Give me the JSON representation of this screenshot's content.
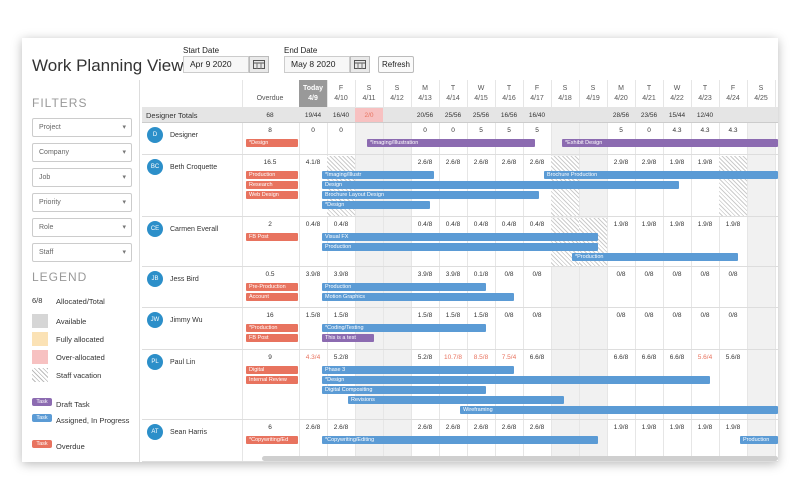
{
  "header": {
    "title": "Work Planning View",
    "start_label": "Start Date",
    "start_value": "Apr 9 2020",
    "end_label": "End Date",
    "end_value": "May 8 2020",
    "refresh_label": "Refresh"
  },
  "filters": {
    "heading": "FILTERS",
    "items": [
      "Project",
      "Company",
      "Job",
      "Priority",
      "Role",
      "Staff"
    ]
  },
  "legend": {
    "heading": "LEGEND",
    "items": [
      {
        "swatch": "6/8",
        "label": "Allocated/Total"
      },
      {
        "swatch": "",
        "label": "Available"
      },
      {
        "swatch": "",
        "label": "Fully allocated"
      },
      {
        "swatch": "",
        "label": "Over-allocated"
      },
      {
        "swatch": "",
        "label": "Staff vacation"
      }
    ],
    "tasks": [
      {
        "badge": "Task",
        "label": "Draft Task",
        "color": "#8c6bb1"
      },
      {
        "badge": "Task",
        "label": "Assigned, In Progress",
        "color": "#5b9bd5"
      },
      {
        "badge": "Task",
        "label": "Overdue",
        "color": "#e8735f"
      }
    ]
  },
  "columns": {
    "overdue_label": "Overdue",
    "days": [
      {
        "d": "Today",
        "n": "4/9"
      },
      {
        "d": "F",
        "n": "4/10"
      },
      {
        "d": "S",
        "n": "4/11"
      },
      {
        "d": "S",
        "n": "4/12"
      },
      {
        "d": "M",
        "n": "4/13"
      },
      {
        "d": "T",
        "n": "4/14"
      },
      {
        "d": "W",
        "n": "4/15"
      },
      {
        "d": "T",
        "n": "4/16"
      },
      {
        "d": "F",
        "n": "4/17"
      },
      {
        "d": "S",
        "n": "4/18"
      },
      {
        "d": "S",
        "n": "4/19"
      },
      {
        "d": "M",
        "n": "4/20"
      },
      {
        "d": "T",
        "n": "4/21"
      },
      {
        "d": "W",
        "n": "4/22"
      },
      {
        "d": "T",
        "n": "4/23"
      },
      {
        "d": "F",
        "n": "4/24"
      },
      {
        "d": "S",
        "n": "4/25"
      }
    ]
  },
  "totals": {
    "label": "Designer Totals",
    "overdue": "68",
    "values": [
      "19/44",
      "16/40",
      "2/0",
      "",
      "20/56",
      "25/56",
      "25/56",
      "16/56",
      "16/40",
      "",
      "",
      "28/56",
      "23/56",
      "15/44",
      "12/40",
      "",
      ""
    ]
  },
  "people": [
    {
      "initials": "D",
      "name": "Designer",
      "overdue": "8",
      "values": [
        "0",
        "0",
        "",
        "",
        "0",
        "0",
        "5",
        "5",
        "5",
        "",
        "",
        "5",
        "0",
        "4.3",
        "4.3",
        "4.3",
        ""
      ],
      "bars": [
        "*Design",
        "*Imaging/Illustration",
        "*Exhibit Design"
      ]
    },
    {
      "initials": "BC",
      "name": "Beth Croquette",
      "overdue": "16.5",
      "values": [
        "4.1/8",
        "",
        "",
        "",
        "2.6/8",
        "2.6/8",
        "2.6/8",
        "2.6/8",
        "2.6/8",
        "",
        "",
        "2.9/8",
        "2.9/8",
        "1.9/8",
        "1.9/8",
        "",
        ""
      ],
      "bars": [
        "Production",
        "*Imaging/Illustr",
        "Brochure Production",
        "Research",
        "Design",
        "Web Design",
        "Brochure Layout Design",
        "*Design"
      ]
    },
    {
      "initials": "CE",
      "name": "Carmen Everall",
      "overdue": "2",
      "values": [
        "0.4/8",
        "0.4/8",
        "",
        "",
        "0.4/8",
        "0.4/8",
        "0.4/8",
        "0.4/8",
        "0.4/8",
        "",
        "",
        "1.9/8",
        "1.9/8",
        "1.9/8",
        "1.9/8",
        "1.9/8",
        ""
      ],
      "bars": [
        "FB Post",
        "Visual FX",
        "Production",
        "*Production"
      ]
    },
    {
      "initials": "JB",
      "name": "Jess Bird",
      "overdue": "0.5",
      "values": [
        "3.9/8",
        "3.9/8",
        "",
        "",
        "3.9/8",
        "3.9/8",
        "0.1/8",
        "0/8",
        "0/8",
        "",
        "",
        "0/8",
        "0/8",
        "0/8",
        "0/8",
        "0/8",
        ""
      ],
      "bars": [
        "Pre-Production",
        "Production",
        "Account",
        "Motion Graphics"
      ]
    },
    {
      "initials": "JW",
      "name": "Jimmy Wu",
      "overdue": "16",
      "values": [
        "1.5/8",
        "1.5/8",
        "",
        "",
        "1.5/8",
        "1.5/8",
        "1.5/8",
        "0/8",
        "0/8",
        "",
        "",
        "0/8",
        "0/8",
        "0/8",
        "0/8",
        "0/8",
        ""
      ],
      "bars": [
        "*Production",
        "*Coding/Testing",
        "FB Post",
        "This is a test"
      ]
    },
    {
      "initials": "PL",
      "name": "Paul Lin",
      "overdue": "9",
      "values": [
        "4.3/4",
        "5.2/8",
        "",
        "",
        "5.2/8",
        "10.7/8",
        "8.5/8",
        "7.5/4",
        "6.6/8",
        "",
        "",
        "6.6/8",
        "6.6/8",
        "6.6/8",
        "5.6/4",
        "5.6/8",
        ""
      ],
      "bars": [
        "Digital",
        "Phase 3",
        "Internal Review",
        "*Design",
        "Digital Compositing",
        "Revisions",
        "Wireframing"
      ]
    },
    {
      "initials": "AT",
      "name": "Sean Harris",
      "overdue": "6",
      "values": [
        "2.6/8",
        "2.6/8",
        "",
        "",
        "2.6/8",
        "2.6/8",
        "2.6/8",
        "2.6/8",
        "2.6/8",
        "",
        "",
        "1.9/8",
        "1.9/8",
        "1.9/8",
        "1.9/8",
        "1.9/8",
        ""
      ],
      "bars": [
        "*Copywriting/Ed",
        "*Copywriting/Editing",
        "Production"
      ]
    }
  ],
  "colors": {
    "accent": "#2c8fc9",
    "assigned": "#5b9bd5",
    "draft": "#8c6bb1",
    "overdue": "#e8735f"
  }
}
